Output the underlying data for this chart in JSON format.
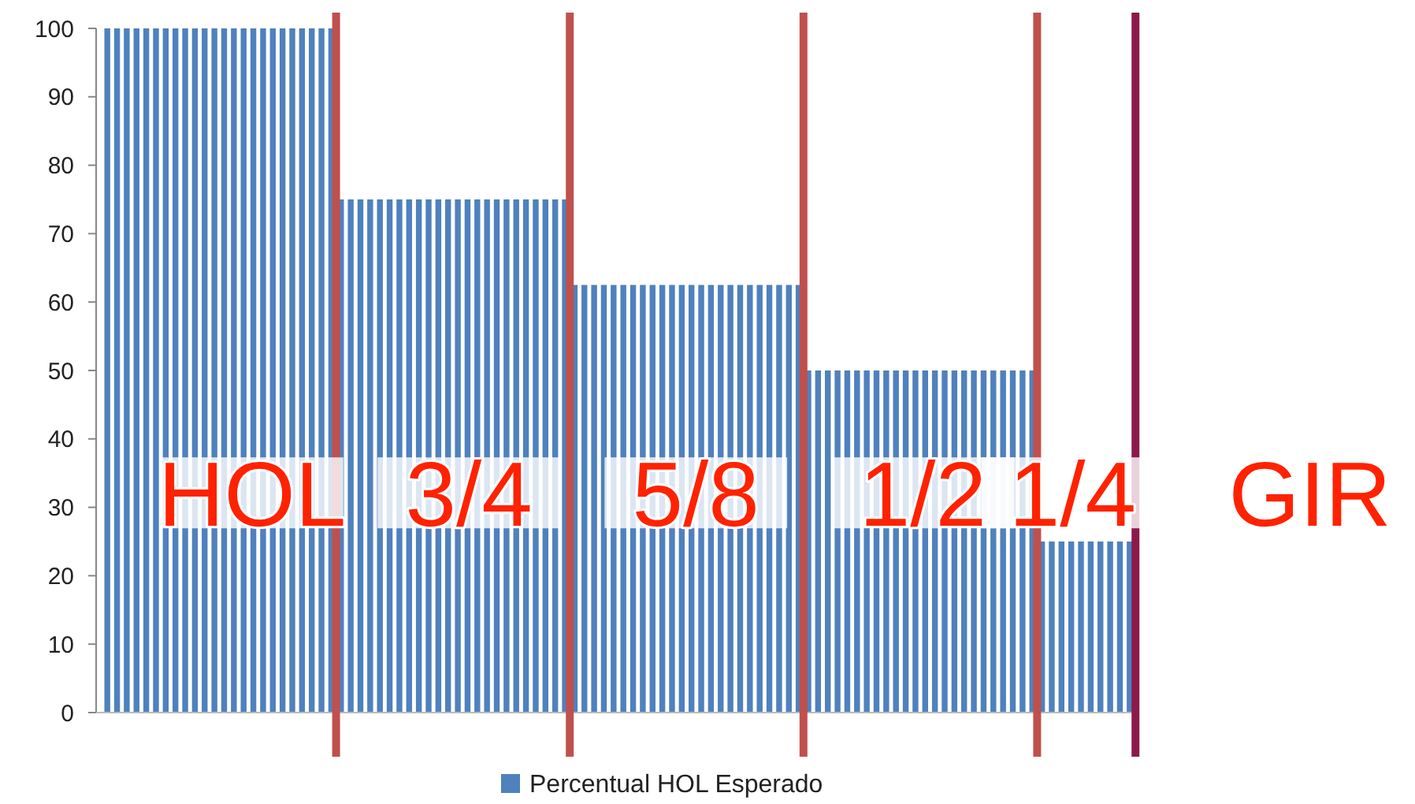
{
  "chart_data": {
    "type": "bar",
    "categories": [
      null,
      null,
      null,
      null,
      null,
      null,
      null,
      null,
      null,
      null,
      null,
      null,
      null,
      null,
      null,
      null,
      null,
      null,
      null,
      null,
      null,
      null,
      null,
      null,
      null,
      null,
      null,
      null,
      null,
      null,
      null,
      null,
      null,
      null,
      null,
      null,
      null,
      null,
      null,
      null,
      null,
      null,
      null,
      null,
      null,
      null,
      null,
      null,
      null,
      null,
      null,
      null,
      null,
      null,
      null,
      null,
      null,
      null,
      null,
      null,
      null,
      null,
      null,
      null,
      null,
      null,
      null,
      null,
      null,
      null,
      null,
      null,
      null,
      null,
      null,
      null,
      null,
      null,
      null,
      null,
      null,
      null,
      null,
      null,
      null,
      null,
      null,
      null,
      null,
      null,
      null,
      null,
      null,
      null,
      null,
      null,
      null,
      null,
      null,
      null,
      null,
      null,
      null,
      null,
      null,
      null
    ],
    "series": [
      {
        "name": "Percentual HOL Esperado",
        "color": "#4f81bd",
        "values": [
          100,
          100,
          100,
          100,
          100,
          100,
          100,
          100,
          100,
          100,
          100,
          100,
          100,
          100,
          100,
          100,
          100,
          100,
          100,
          100,
          100,
          100,
          100,
          100,
          75,
          75,
          75,
          75,
          75,
          75,
          75,
          75,
          75,
          75,
          75,
          75,
          75,
          75,
          75,
          75,
          75,
          75,
          75,
          75,
          75,
          75,
          75,
          75,
          62.5,
          62.5,
          62.5,
          62.5,
          62.5,
          62.5,
          62.5,
          62.5,
          62.5,
          62.5,
          62.5,
          62.5,
          62.5,
          62.5,
          62.5,
          62.5,
          62.5,
          62.5,
          62.5,
          62.5,
          62.5,
          62.5,
          62.5,
          62.5,
          50,
          50,
          50,
          50,
          50,
          50,
          50,
          50,
          50,
          50,
          50,
          50,
          50,
          50,
          50,
          50,
          50,
          50,
          50,
          50,
          50,
          50,
          50,
          50,
          25,
          25,
          25,
          25,
          25,
          25,
          25,
          25,
          25,
          25
        ]
      }
    ],
    "ylim": [
      0,
      100
    ],
    "yticks": [
      0,
      10,
      20,
      30,
      40,
      50,
      60,
      70,
      80,
      90,
      100
    ],
    "grid": false,
    "legend": "bottom",
    "annotations": [
      "HOL",
      "3/4",
      "5/8",
      "1/2",
      "1/4",
      "GIR"
    ]
  }
}
